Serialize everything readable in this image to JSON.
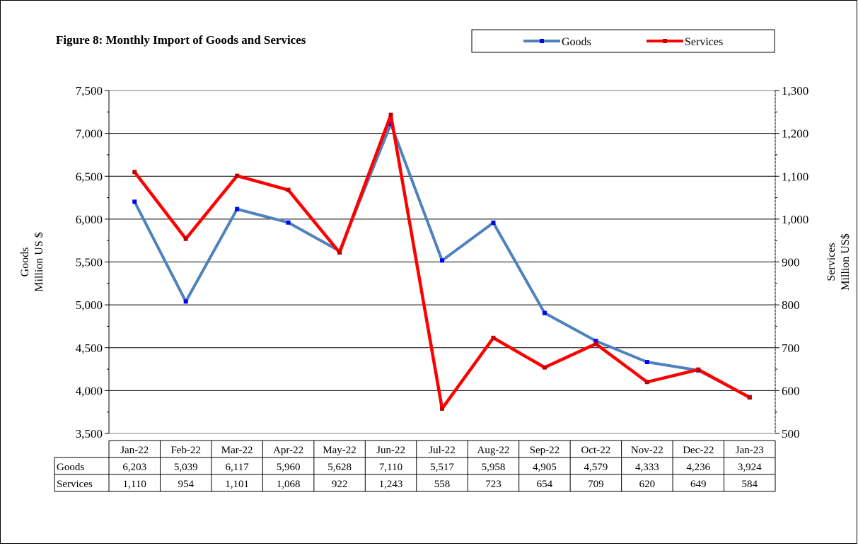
{
  "chart_data": {
    "type": "line",
    "title": "Figure 8: Monthly Import of Goods and Services",
    "categories": [
      "Jan-22",
      "Feb-22",
      "Mar-22",
      "Apr-22",
      "May-22",
      "Jun-22",
      "Jul-22",
      "Aug-22",
      "Sep-22",
      "Oct-22",
      "Nov-22",
      "Dec-22",
      "Jan-23"
    ],
    "series": [
      {
        "name": "Goods",
        "axis": "left",
        "color": "#4F81BD",
        "values": [
          6203,
          5039,
          6117,
          5960,
          5628,
          7110,
          5517,
          5958,
          4905,
          4579,
          4333,
          4236,
          3924
        ],
        "labels": [
          "6,203",
          "5,039",
          "6,117",
          "5,960",
          "5,628",
          "7,110",
          "5,517",
          "5,958",
          "4,905",
          "4,579",
          "4,333",
          "4,236",
          "3,924"
        ]
      },
      {
        "name": "Services",
        "axis": "right",
        "color": "#FF0000",
        "values": [
          1110,
          954,
          1101,
          1068,
          922,
          1243,
          558,
          723,
          654,
          709,
          620,
          649,
          584
        ],
        "labels": [
          "1,110",
          "954",
          "1,101",
          "1,068",
          "922",
          "1,243",
          "558",
          "723",
          "654",
          "709",
          "620",
          "649",
          "584"
        ]
      }
    ],
    "left_axis": {
      "label_lines": [
        "Goods",
        "Million US $"
      ],
      "ylim": [
        3500,
        7500
      ],
      "ticks": [
        3500,
        4000,
        4500,
        5000,
        5500,
        6000,
        6500,
        7000,
        7500
      ],
      "tick_labels": [
        "3,500",
        "4,000",
        "4,500",
        "5,000",
        "5,500",
        "6,000",
        "6,500",
        "7,000",
        "7,500"
      ]
    },
    "right_axis": {
      "label_lines": [
        "Services",
        "Million US$"
      ],
      "ylim": [
        500,
        1300
      ],
      "ticks": [
        500,
        600,
        700,
        800,
        900,
        1000,
        1100,
        1200,
        1300
      ],
      "tick_labels": [
        "500",
        "600",
        "700",
        "800",
        "900",
        "1,000",
        "1,100",
        "1,200",
        "1,300"
      ]
    },
    "grid": true,
    "legend_position": "top-right",
    "data_table": true
  }
}
